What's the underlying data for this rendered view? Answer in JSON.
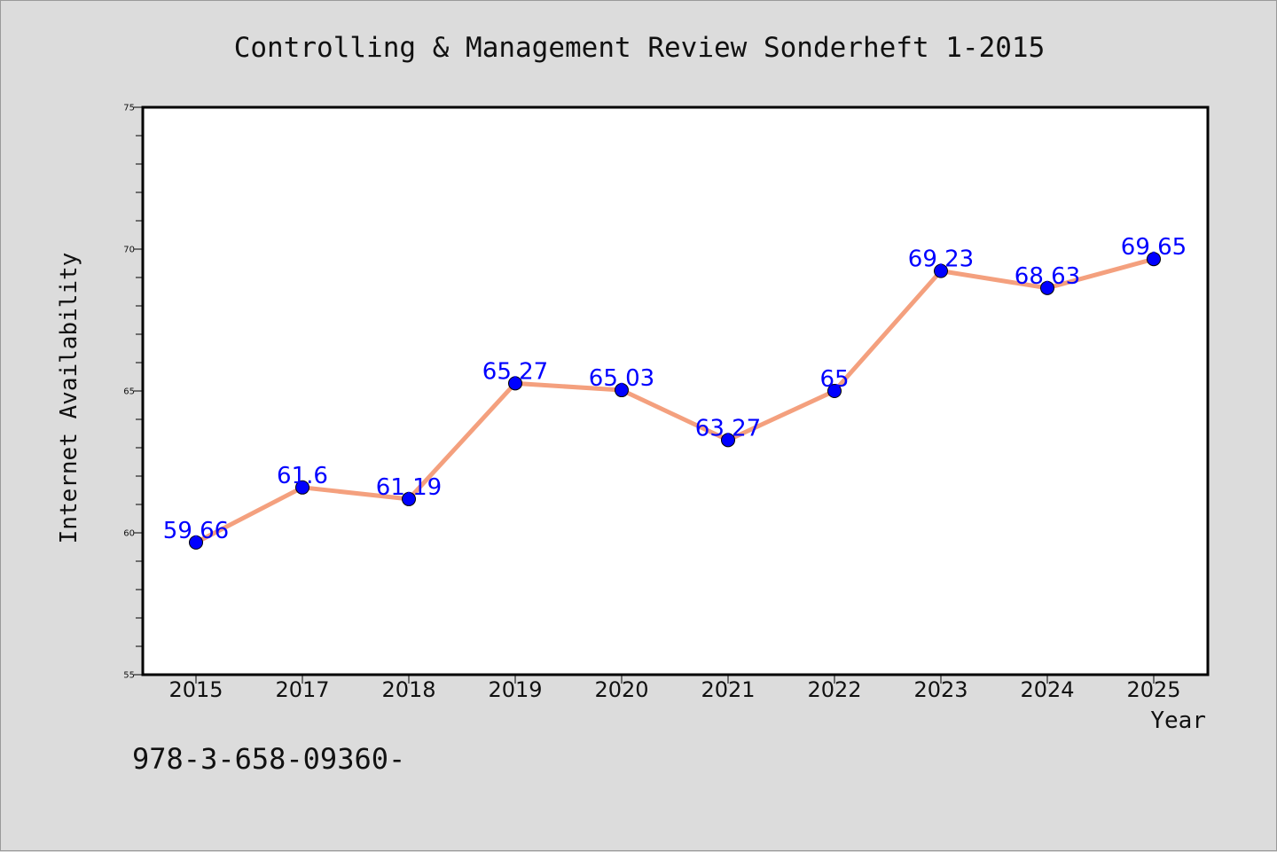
{
  "chart_data": {
    "type": "line",
    "title": "Controlling & Management Review Sonderheft 1-2015",
    "xlabel": "Year",
    "ylabel": "Internet Availability",
    "categories": [
      "2015",
      "2017",
      "2018",
      "2019",
      "2020",
      "2021",
      "2022",
      "2023",
      "2024",
      "2025"
    ],
    "values": [
      59.66,
      61.6,
      61.19,
      65.27,
      65.03,
      63.27,
      65,
      69.23,
      68.63,
      69.65
    ],
    "data_labels": [
      "59.66",
      "61.6",
      "61.19",
      "65.27",
      "65.03",
      "63.27",
      "65",
      "69.23",
      "68.63",
      "69.65"
    ],
    "ylim": [
      55,
      75
    ],
    "y_ticks": [
      55,
      60,
      65,
      70,
      75
    ],
    "grid": false,
    "line_color": "#f4a07e",
    "marker_color": "#0000ff",
    "label_color": "#0000ff"
  },
  "footer": {
    "text": "978-3-658-09360-"
  }
}
